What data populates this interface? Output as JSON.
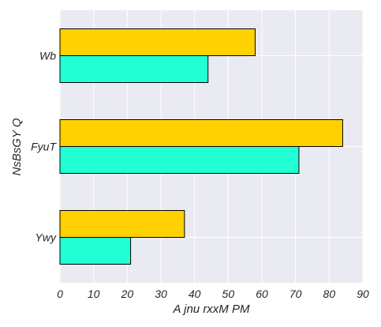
{
  "chart_data": {
    "type": "bar",
    "orientation": "horizontal",
    "categories": [
      "Wb",
      "FyuT",
      "Ywy"
    ],
    "series": [
      {
        "color": "#ffd100",
        "values": [
          58,
          84,
          37
        ]
      },
      {
        "color": "#22ffd4",
        "values": [
          44,
          71,
          21
        ]
      }
    ],
    "xlabel": "A jnu rxxM PM",
    "ylabel": "NsBsGY Q",
    "xlim": [
      0,
      90
    ],
    "xticks": [
      0,
      10,
      20,
      30,
      40,
      50,
      60,
      70,
      80,
      90
    ],
    "grid": true,
    "background": "#eaeaf2",
    "bar_edge_color": "#000000"
  }
}
